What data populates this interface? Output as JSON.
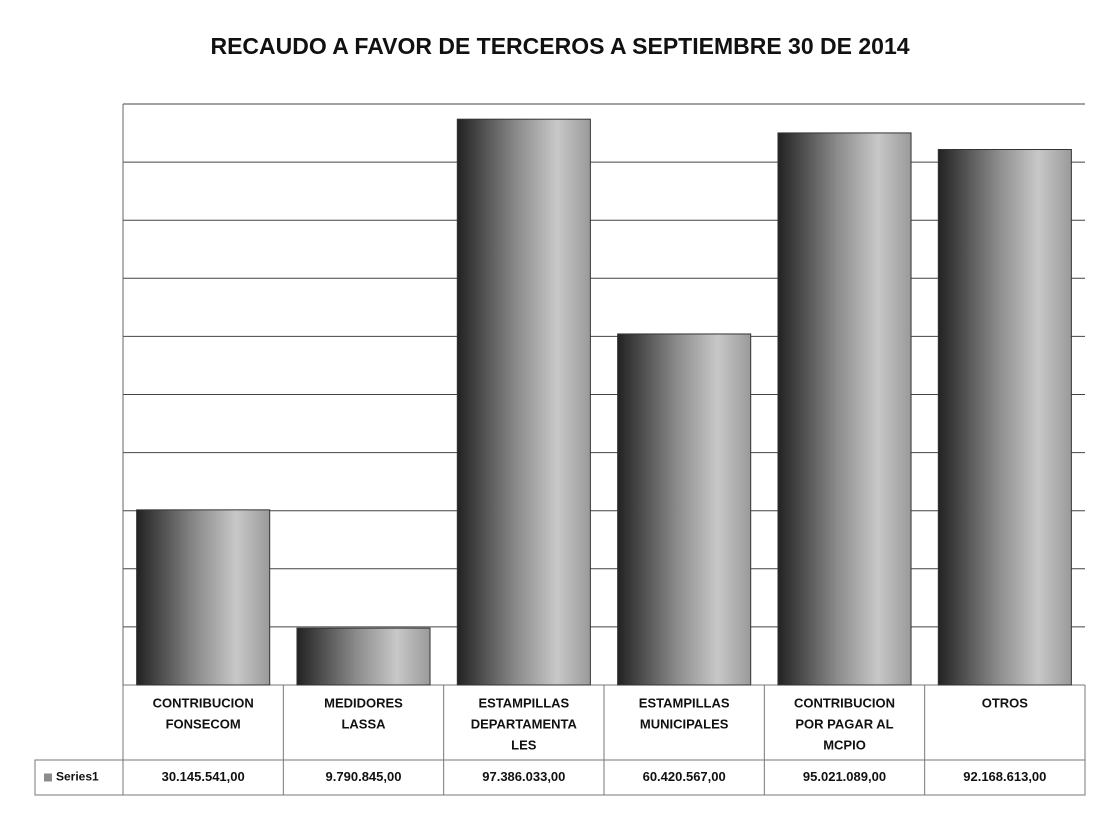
{
  "chart_data": {
    "type": "bar",
    "title": "RECAUDO A FAVOR DE TERCEROS  A  SEPTIEMBRE 30 DE 2014",
    "categories": [
      [
        "CONTRIBUCION",
        "FONSECOM"
      ],
      [
        "MEDIDORES",
        "LASSA"
      ],
      [
        "ESTAMPILLAS",
        "DEPARTAMENTA",
        "LES"
      ],
      [
        "ESTAMPILLAS",
        "MUNICIPALES"
      ],
      [
        "CONTRIBUCION",
        "POR PAGAR AL",
        "MCPIO"
      ],
      [
        "OTROS"
      ]
    ],
    "series": [
      {
        "name": "Series1",
        "color": "#8c8c8c",
        "values": [
          30145541,
          9790845,
          97386033,
          60420567,
          95021089,
          92168613
        ],
        "value_labels": [
          "30.145.541,00",
          "9.790.845,00",
          "97.386.033,00",
          "60.420.567,00",
          "95.021.089,00",
          "92.168.613,00"
        ]
      }
    ],
    "ylim": [
      0,
      100000000
    ],
    "yticks": [
      0,
      10000000,
      20000000,
      30000000,
      40000000,
      50000000,
      60000000,
      70000000,
      80000000,
      90000000,
      100000000
    ],
    "grid": true
  }
}
